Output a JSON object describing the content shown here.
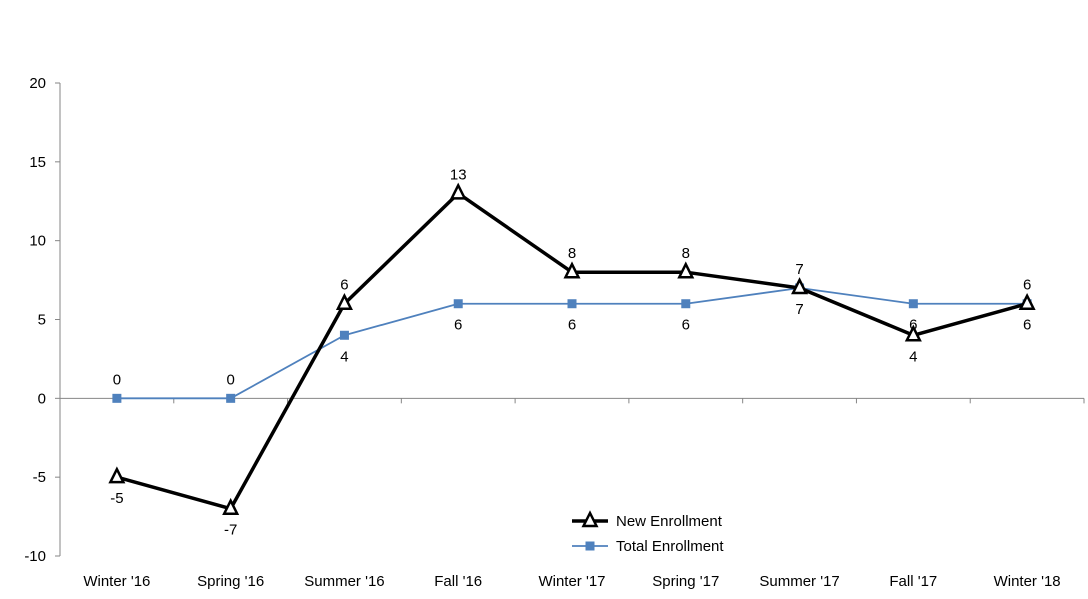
{
  "chart_data": {
    "type": "line",
    "title": "",
    "xlabel": "",
    "ylabel": "",
    "categories": [
      "Winter '16",
      "Spring '16",
      "Summer '16",
      "Fall '16",
      "Winter '17",
      "Spring '17",
      "Summer '17",
      "Fall '17",
      "Winter '18"
    ],
    "ylim": [
      -10,
      20
    ],
    "yticks": [
      -10,
      -5,
      0,
      5,
      10,
      15,
      20
    ],
    "grid": false,
    "legend_position": "bottom-center",
    "series": [
      {
        "name": "New Enrollment",
        "values": [
          -5,
          -7,
          6,
          13,
          8,
          8,
          7,
          4,
          6
        ],
        "color": "#000000",
        "marker": "triangle-open",
        "labels": [
          "-5",
          "-7",
          "6",
          "13",
          "8",
          "8",
          "7",
          "4",
          "6"
        ]
      },
      {
        "name": "Total Enrollment",
        "values": [
          0,
          0,
          4,
          6,
          6,
          6,
          7,
          6,
          6
        ],
        "color": "#4F81BD",
        "marker": "square",
        "labels": [
          "0",
          "0",
          "4",
          "6",
          "6",
          "6",
          "7",
          "6",
          "6"
        ]
      }
    ]
  }
}
